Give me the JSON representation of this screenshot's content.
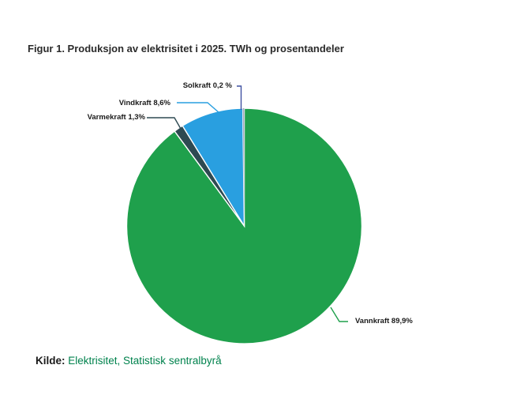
{
  "chart_data": {
    "type": "pie",
    "title": "Figur 1. Produksjon av elektrisitet i 2025. TWh og prosentandeler",
    "unit_note": "TWh og prosentandeler",
    "start_angle_deg": 0,
    "direction": "clockwise",
    "legend_position": "callout-labels",
    "slices": [
      {
        "label": "Vannkraft",
        "percent": 89.9,
        "display": "Vannkraft 89,9%",
        "color": "#1FA04C"
      },
      {
        "label": "Varmekraft",
        "percent": 1.3,
        "display": "Varmekraft 1,3%",
        "color": "#2E4A52"
      },
      {
        "label": "Vindkraft",
        "percent": 8.6,
        "display": "Vindkraft 8,6%",
        "color": "#299FE0"
      },
      {
        "label": "Solkraft",
        "percent": 0.2,
        "display": "Solkraft 0,2 %",
        "color": "#9FA8BC",
        "callout_color": "#3F51A1"
      }
    ]
  },
  "source": {
    "prefix": "Kilde:",
    "text": "Elektrisitet, Statistisk sentralbyrå",
    "link_color": "#00824d"
  }
}
